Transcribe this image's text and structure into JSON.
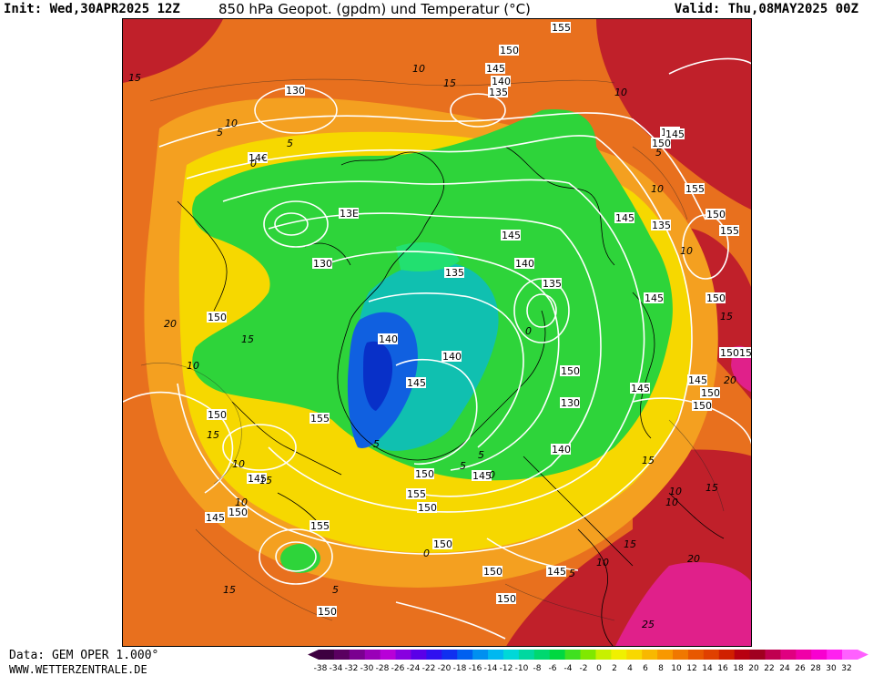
{
  "header": {
    "init": "Init: Wed,30APR2025 12Z",
    "title": "850 hPa Geopot. (gpdm) und Temperatur (°C)",
    "valid": "Valid: Thu,08MAY2025 00Z"
  },
  "footer": {
    "data_source": "Data: GEM OPER 1.000°",
    "site": "WWW.WETTERZENTRALE.DE"
  },
  "legend": {
    "ticks": [
      "-38",
      "-34",
      "-32",
      "-30",
      "-28",
      "-26",
      "-24",
      "-22",
      "-20",
      "-18",
      "-16",
      "-14",
      "-12",
      "-10",
      "-8",
      "-6",
      "-4",
      "-2",
      "0",
      "2",
      "4",
      "6",
      "8",
      "10",
      "12",
      "14",
      "16",
      "18",
      "20",
      "22",
      "24",
      "26",
      "28",
      "30",
      "32"
    ],
    "colors": [
      "#3d0040",
      "#5a0060",
      "#7a0090",
      "#9a00b8",
      "#b800d8",
      "#8800e0",
      "#5a00e8",
      "#3010f0",
      "#1030f0",
      "#0060f0",
      "#0090f0",
      "#00b8f0",
      "#00d8d8",
      "#00d8a0",
      "#00d870",
      "#00d840",
      "#40e020",
      "#80e800",
      "#c8f000",
      "#f0f000",
      "#f8d800",
      "#f8b800",
      "#f89800",
      "#f07800",
      "#e85800",
      "#e04000",
      "#d02000",
      "#b80010",
      "#a00020",
      "#c00050",
      "#e00080",
      "#f000a8",
      "#f800d0",
      "#ff20f0",
      "#ff60ff"
    ]
  },
  "map": {
    "colors": {
      "warm_red": "#c0202a",
      "orange": "#e8701e",
      "light_orange": "#f4a020",
      "yellow": "#f6d800",
      "green": "#2ed43a",
      "bright_green": "#22e070",
      "teal": "#10c0b0",
      "blue": "#1060e0",
      "deep_blue": "#0830c8",
      "magenta": "#e0208a"
    },
    "contour_labels": [
      "155",
      "150",
      "145",
      "140",
      "135",
      "130",
      "14€",
      "13E",
      "130",
      "135",
      "145",
      "155",
      "150",
      "155",
      "150",
      "145",
      "140",
      "135",
      "135",
      "130",
      "140",
      "145",
      "150",
      "150",
      "140",
      "145",
      "155",
      "150",
      "150",
      "145",
      "150",
      "150",
      "145",
      "155",
      "150",
      "145",
      "145",
      "155",
      "150",
      "155",
      "150",
      "140",
      "145",
      "150",
      "145",
      "150",
      "150",
      "145",
      "150",
      "150",
      "150"
    ],
    "temp_labels": [
      "15",
      "10",
      "5",
      "0",
      "5",
      "10",
      "15",
      "10",
      "5",
      "10",
      "0",
      "15",
      "10",
      "15",
      "10",
      "5",
      "0",
      "5",
      "15",
      "10",
      "20",
      "15",
      "10",
      "15",
      "10",
      "5",
      "10",
      "15",
      "20",
      "15",
      "10",
      "5",
      "0",
      "5",
      "15",
      "20",
      "25"
    ]
  }
}
